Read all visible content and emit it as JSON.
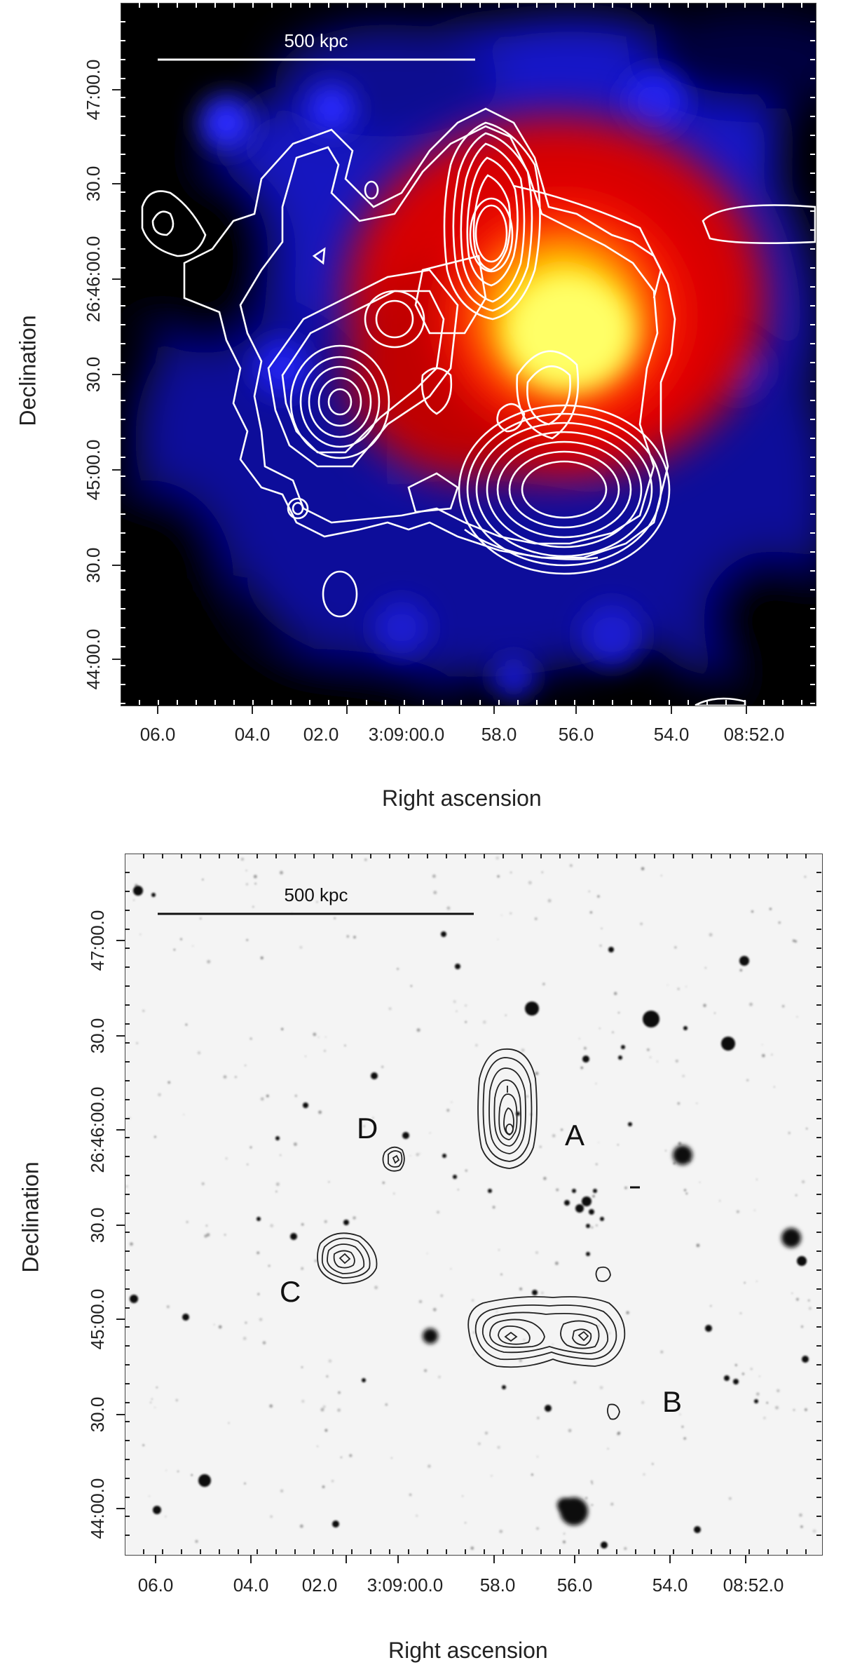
{
  "figure": {
    "panels": [
      {
        "id": "xray",
        "scale_bar_label": "500 kpc",
        "y_axis_label": "Declination",
        "x_axis_label": "Right ascension",
        "y_ticks": [
          "47:00.0",
          "30.0",
          "26:46:00.0",
          "30.0",
          "45:00.0",
          "30.0",
          "44:00.0"
        ],
        "x_ticks": [
          "06.0",
          "04.0",
          "02.0",
          "3:09:00.0",
          "58.0",
          "56.0",
          "54.0",
          "08:52.0"
        ],
        "colors": {
          "background": "#000000",
          "low": "#1a1aff",
          "mid": "#ff1a00",
          "peak": "#ffff33",
          "contours": "#ffffff"
        }
      },
      {
        "id": "optical",
        "scale_bar_label": "500 kpc",
        "y_axis_label": "Declination",
        "x_axis_label": "Right ascension",
        "y_ticks": [
          "47:00.0",
          "30.0",
          "26:46:00.0",
          "30.0",
          "45:00.0",
          "30.0",
          "44:00.0"
        ],
        "x_ticks": [
          "06.0",
          "04.0",
          "02.0",
          "3:09:00.0",
          "58.0",
          "56.0",
          "54.0",
          "08:52.0"
        ],
        "source_labels": [
          "A",
          "B",
          "C",
          "D"
        ],
        "colors": {
          "background": "#f4f4f4",
          "stars": "#111111",
          "contours": "#111111"
        }
      }
    ]
  }
}
